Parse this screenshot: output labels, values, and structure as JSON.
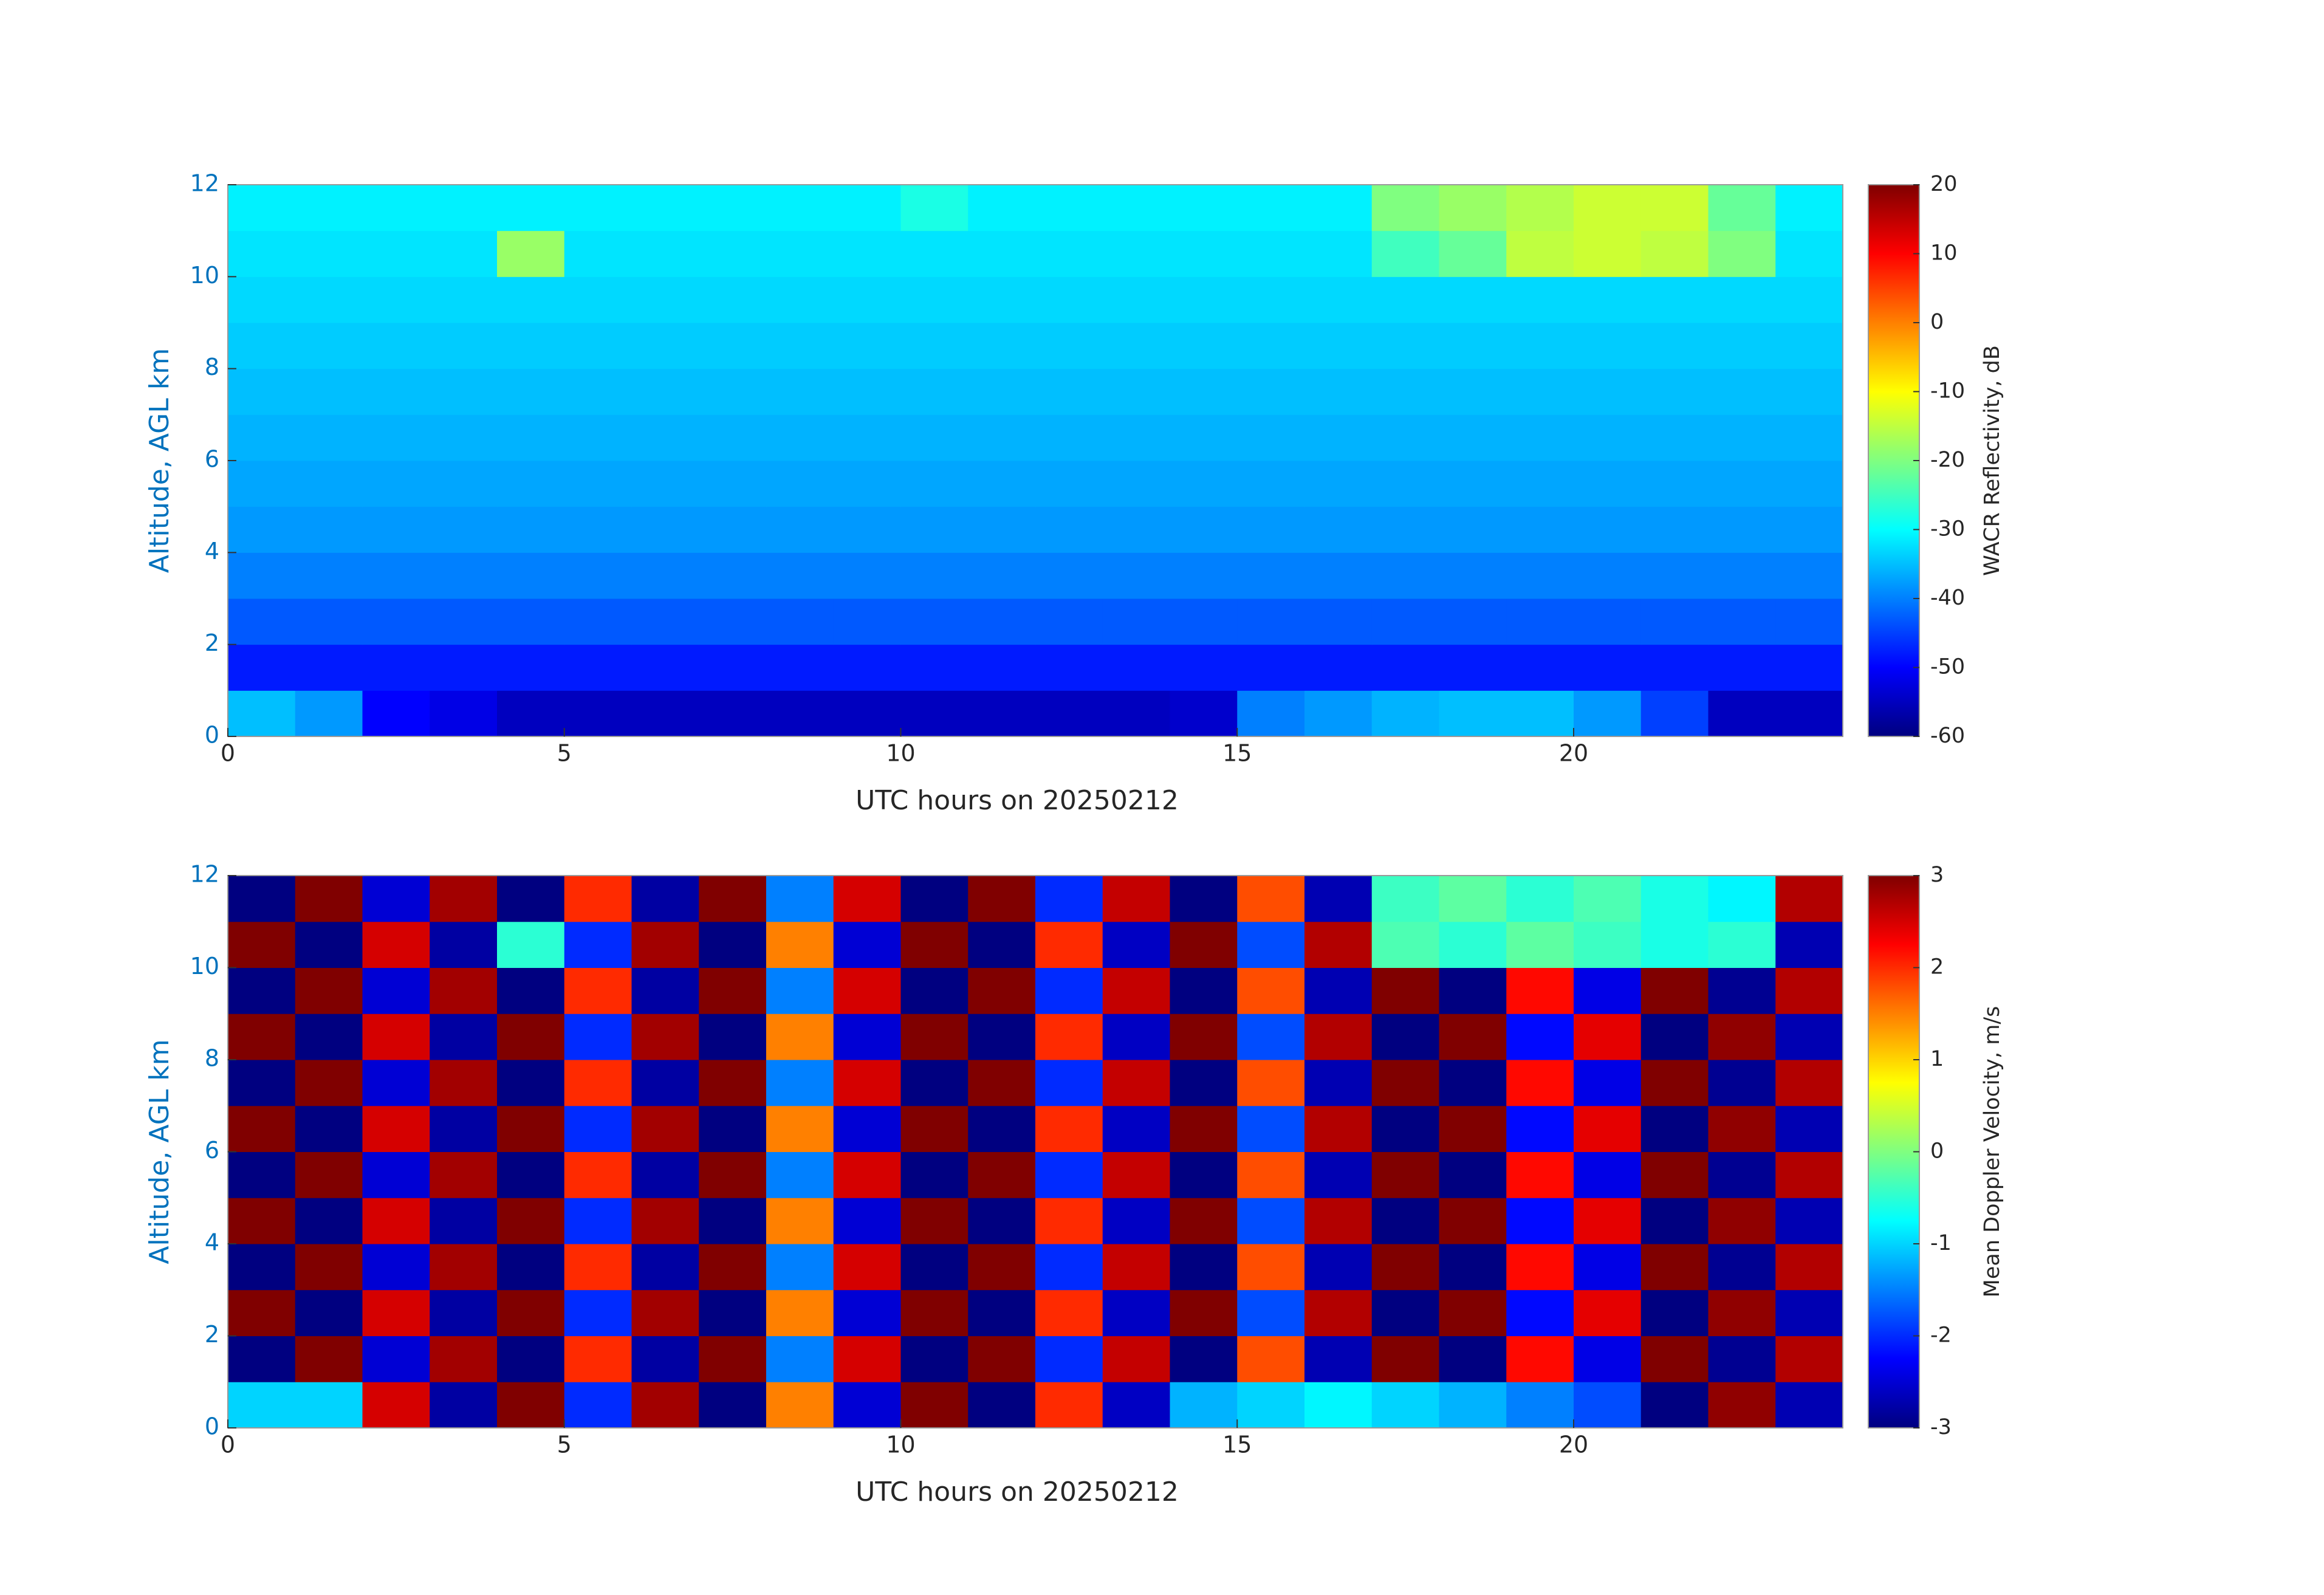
{
  "chart_data": [
    {
      "type": "heatmap",
      "xlabel": "UTC hours on 20250212",
      "ylabel": "Altitude, AGL km",
      "colorbar_label": "WACR Reflectivity, dB",
      "colormap": "jet",
      "y_axis_color": "#0072bd",
      "xlim": [
        0,
        24
      ],
      "xticks": [
        0,
        5,
        10,
        15,
        20
      ],
      "ylim": [
        0,
        12
      ],
      "yticks": [
        0,
        2,
        4,
        6,
        8,
        10,
        12
      ],
      "clim": [
        -60,
        20
      ],
      "cticks": [
        -60,
        -50,
        -40,
        -30,
        -20,
        -10,
        0,
        10,
        20
      ],
      "x_edges": [
        0,
        1,
        2,
        3,
        4,
        5,
        6,
        7,
        8,
        9,
        10,
        11,
        12,
        13,
        14,
        15,
        16,
        17,
        18,
        19,
        20,
        21,
        22,
        23,
        24
      ],
      "y_edges": [
        0,
        1,
        2,
        3,
        4,
        5,
        6,
        7,
        8,
        9,
        10,
        11,
        12
      ],
      "values": [
        [
          -35,
          -38,
          -50,
          -52,
          -55,
          -55,
          -55,
          -55,
          -55,
          -55,
          -55,
          -55,
          -55,
          -55,
          -54,
          -40,
          -38,
          -36,
          -35,
          -35,
          -38,
          -45,
          -55,
          -55
        ],
        [
          -48,
          -48,
          -48,
          -48,
          -48,
          -48,
          -48,
          -48,
          -48,
          -48,
          -48,
          -48,
          -48,
          -48,
          -48,
          -48,
          -48,
          -48,
          -48,
          -48,
          -48,
          -48,
          -48,
          -48
        ],
        [
          -43,
          -43,
          -43,
          -43,
          -43,
          -43,
          -43,
          -43,
          -43,
          -43,
          -43,
          -43,
          -43,
          -43,
          -43,
          -43,
          -43,
          -43,
          -43,
          -43,
          -43,
          -43,
          -43,
          -43
        ],
        [
          -40,
          -40,
          -40,
          -40,
          -40,
          -40,
          -40,
          -40,
          -40,
          -40,
          -40,
          -40,
          -40,
          -40,
          -40,
          -40,
          -40,
          -40,
          -40,
          -40,
          -40,
          -40,
          -40,
          -40
        ],
        [
          -38,
          -38,
          -38,
          -38,
          -38,
          -38,
          -38,
          -38,
          -38,
          -38,
          -38,
          -38,
          -38,
          -38,
          -38,
          -38,
          -38,
          -38,
          -38,
          -38,
          -38,
          -38,
          -38,
          -38
        ],
        [
          -37,
          -37,
          -37,
          -37,
          -37,
          -37,
          -37,
          -37,
          -37,
          -37,
          -37,
          -37,
          -37,
          -37,
          -37,
          -37,
          -37,
          -37,
          -37,
          -37,
          -37,
          -37,
          -37,
          -37
        ],
        [
          -36,
          -36,
          -36,
          -36,
          -36,
          -36,
          -36,
          -36,
          -36,
          -36,
          -36,
          -36,
          -36,
          -36,
          -36,
          -36,
          -36,
          -36,
          -36,
          -36,
          -36,
          -36,
          -36,
          -36
        ],
        [
          -35,
          -35,
          -35,
          -35,
          -35,
          -35,
          -35,
          -35,
          -35,
          -35,
          -35,
          -35,
          -35,
          -35,
          -35,
          -35,
          -35,
          -35,
          -35,
          -35,
          -35,
          -35,
          -35,
          -35
        ],
        [
          -34,
          -34,
          -34,
          -34,
          -34,
          -34,
          -34,
          -34,
          -34,
          -34,
          -34,
          -34,
          -34,
          -34,
          -34,
          -34,
          -34,
          -34,
          -34,
          -34,
          -34,
          -34,
          -34,
          -34
        ],
        [
          -33,
          -33,
          -33,
          -33,
          -33,
          -33,
          -33,
          -33,
          -33,
          -33,
          -33,
          -33,
          -33,
          -33,
          -33,
          -33,
          -33,
          -33,
          -33,
          -33,
          -33,
          -33,
          -33,
          -33
        ],
        [
          -32,
          -32,
          -32,
          -32,
          -18,
          -32,
          -32,
          -32,
          -32,
          -32,
          -32,
          -32,
          -32,
          -32,
          -32,
          -32,
          -32,
          -25,
          -22,
          -15,
          -14,
          -15,
          -20,
          -32
        ],
        [
          -31,
          -31,
          -31,
          -31,
          -31,
          -31,
          -31,
          -31,
          -31,
          -31,
          -28,
          -31,
          -31,
          -31,
          -31,
          -31,
          -31,
          -20,
          -18,
          -16,
          -14,
          -14,
          -22,
          -31
        ]
      ]
    },
    {
      "type": "heatmap",
      "xlabel": "UTC hours on 20250212",
      "ylabel": "Altitude, AGL km",
      "colorbar_label": "Mean Doppler Velocity, m/s",
      "colormap": "jet",
      "y_axis_color": "#0072bd",
      "xlim": [
        0,
        24
      ],
      "xticks": [
        0,
        5,
        10,
        15,
        20
      ],
      "ylim": [
        0,
        12
      ],
      "yticks": [
        0,
        2,
        4,
        6,
        8,
        10,
        12
      ],
      "clim": [
        -3,
        3
      ],
      "cticks": [
        -3,
        -2,
        -1,
        0,
        1,
        2,
        3
      ],
      "x_edges": [
        0,
        1,
        2,
        3,
        4,
        5,
        6,
        7,
        8,
        9,
        10,
        11,
        12,
        13,
        14,
        15,
        16,
        17,
        18,
        19,
        20,
        21,
        22,
        23,
        24
      ],
      "y_edges": [
        0,
        1,
        2,
        3,
        4,
        5,
        6,
        7,
        8,
        9,
        10,
        11,
        12
      ],
      "values": [
        [
          -1,
          -1,
          2.5,
          -2.8,
          3,
          -2,
          2.8,
          -3,
          1.5,
          -2.5,
          3,
          -3,
          2,
          -2.6,
          -1.2,
          -1,
          -0.8,
          -1,
          -1.2,
          -1.5,
          -1.8,
          -3,
          2.9,
          -2.7
        ],
        [
          -3,
          3,
          -2.5,
          2.8,
          -3,
          2,
          -2.8,
          3,
          -1.5,
          2.5,
          -3,
          3,
          -2,
          2.6,
          -3,
          1.8,
          -2.7,
          3,
          -3,
          2.2,
          -2.4,
          3,
          -2.9,
          2.7
        ],
        [
          3,
          -3,
          2.5,
          -2.8,
          3,
          -2,
          2.8,
          -3,
          1.5,
          -2.5,
          3,
          -3,
          2,
          -2.6,
          3,
          -1.8,
          2.7,
          -3,
          3,
          -2.2,
          2.4,
          -3,
          2.9,
          -2.7
        ],
        [
          -3,
          3,
          -2.5,
          2.8,
          -3,
          2,
          -2.8,
          3,
          -1.5,
          2.5,
          -3,
          3,
          -2,
          2.6,
          -3,
          1.8,
          -2.7,
          3,
          -3,
          2.2,
          -2.4,
          3,
          -2.9,
          2.7
        ],
        [
          3,
          -3,
          2.5,
          -2.8,
          3,
          -2,
          2.8,
          -3,
          1.5,
          -2.5,
          3,
          -3,
          2,
          -2.6,
          3,
          -1.8,
          2.7,
          -3,
          3,
          -2.2,
          2.4,
          -3,
          2.9,
          -2.7
        ],
        [
          -3,
          3,
          -2.5,
          2.8,
          -3,
          2,
          -2.8,
          3,
          -1.5,
          2.5,
          -3,
          3,
          -2,
          2.6,
          -3,
          1.8,
          -2.7,
          3,
          -3,
          2.2,
          -2.4,
          3,
          -2.9,
          2.7
        ],
        [
          3,
          -3,
          2.5,
          -2.8,
          3,
          -2,
          2.8,
          -3,
          1.5,
          -2.5,
          3,
          -3,
          2,
          -2.6,
          3,
          -1.8,
          2.7,
          -3,
          3,
          -2.2,
          2.4,
          -3,
          2.9,
          -2.7
        ],
        [
          -3,
          3,
          -2.5,
          2.8,
          -3,
          2,
          -2.8,
          3,
          -1.5,
          2.5,
          -3,
          3,
          -2,
          2.6,
          -3,
          1.8,
          -2.7,
          3,
          -3,
          2.2,
          -2.4,
          3,
          -2.9,
          2.7
        ],
        [
          3,
          -3,
          2.5,
          -2.8,
          3,
          -2,
          2.8,
          -3,
          1.5,
          -2.5,
          3,
          -3,
          2,
          -2.6,
          3,
          -1.8,
          2.7,
          -3,
          3,
          -2.2,
          2.4,
          -3,
          2.9,
          -2.7
        ],
        [
          -3,
          3,
          -2.5,
          2.8,
          -3,
          2,
          -2.8,
          3,
          -1.5,
          2.5,
          -3,
          3,
          -2,
          2.6,
          -3,
          1.8,
          -2.7,
          3,
          -3,
          2.2,
          -2.4,
          3,
          -2.9,
          2.7
        ],
        [
          3,
          -3,
          2.5,
          -2.8,
          -0.5,
          -2,
          2.8,
          -3,
          1.5,
          -2.5,
          3,
          -3,
          2,
          -2.6,
          3,
          -1.8,
          2.7,
          -0.3,
          -0.5,
          -0.2,
          -0.4,
          -0.6,
          -0.5,
          -2.7
        ],
        [
          -3,
          3,
          -2.5,
          2.8,
          -3,
          2,
          -2.8,
          3,
          -1.5,
          2.5,
          -3,
          3,
          -2,
          2.6,
          -3,
          1.8,
          -2.7,
          -0.4,
          -0.2,
          -0.5,
          -0.3,
          -0.6,
          -0.8,
          2.7
        ]
      ]
    }
  ]
}
